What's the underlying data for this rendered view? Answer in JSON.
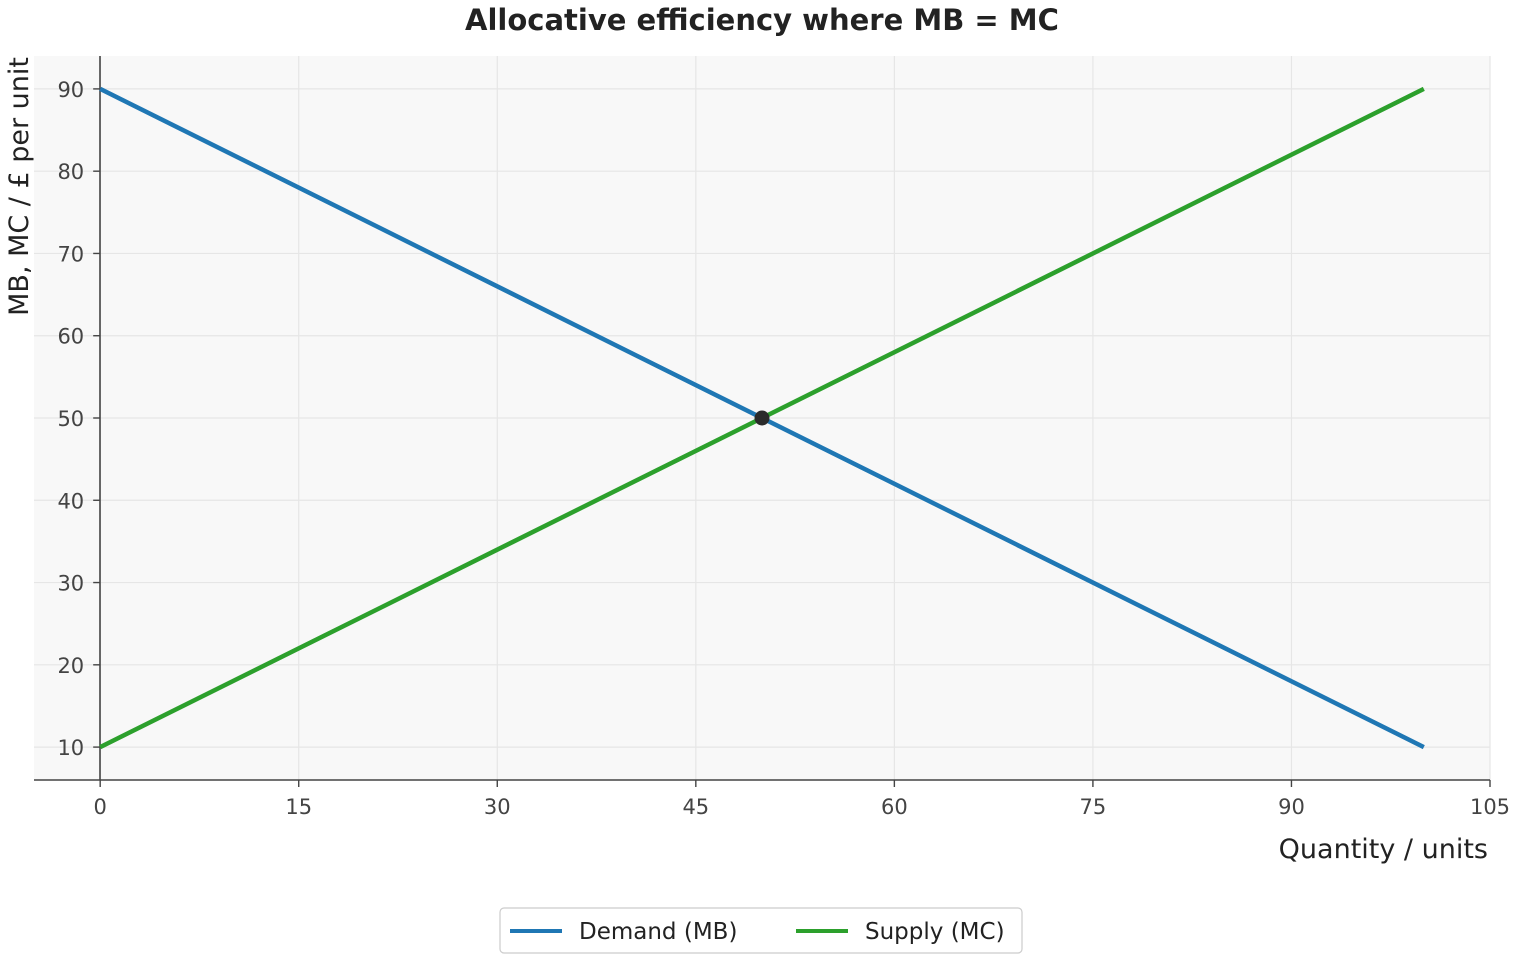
{
  "chart_data": {
    "type": "line",
    "title": "Allocative efficiency where MB = MC",
    "xlabel": "Quantity / units",
    "ylabel": "MB, MC / £ per unit",
    "xlim": [
      -5,
      105
    ],
    "ylim": [
      6,
      94
    ],
    "xticks": [
      0,
      15,
      30,
      45,
      60,
      75,
      90,
      105
    ],
    "yticks": [
      10,
      20,
      30,
      40,
      50,
      60,
      70,
      80,
      90
    ],
    "grid": true,
    "legend_position": "bottom-center",
    "series": [
      {
        "name": "Demand (MB)",
        "color": "#1f77b4",
        "x": [
          0,
          100
        ],
        "y": [
          90,
          10
        ]
      },
      {
        "name": "Supply (MC)",
        "color": "#2ca02c",
        "x": [
          0,
          100
        ],
        "y": [
          10,
          90
        ]
      }
    ],
    "equilibrium": {
      "x": 50,
      "y": 50,
      "color": "#2b2b2b"
    }
  },
  "colors": {
    "plot_background": "#f8f8f8",
    "grid": "#e6e6e6",
    "axis": "#444444"
  }
}
